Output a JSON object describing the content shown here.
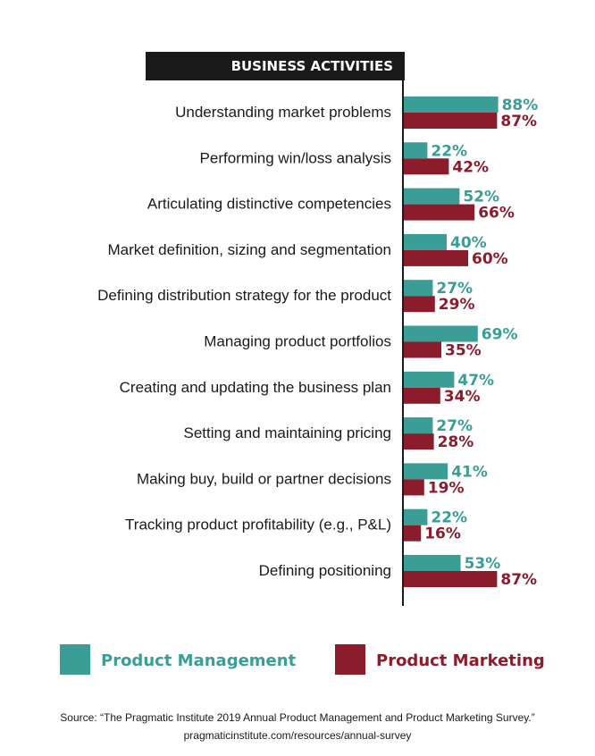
{
  "chart_data": {
    "type": "bar",
    "title": "BUSINESS ACTIVITIES",
    "orientation": "horizontal",
    "categories": [
      "Understanding market problems",
      "Performing win/loss analysis",
      "Articulating distinctive competencies",
      "Market definition, sizing and segmentation",
      "Defining distribution strategy for the product",
      "Managing product portfolios",
      "Creating and updating the business plan",
      "Setting and maintaining pricing",
      "Making buy, build or partner decisions",
      "Tracking product profitability (e.g., P&L)",
      "Defining positioning"
    ],
    "series": [
      {
        "name": "Product Management",
        "color": "#3a9d96",
        "values": [
          88,
          22,
          52,
          40,
          27,
          69,
          47,
          27,
          41,
          22,
          53
        ]
      },
      {
        "name": "Product Marketing",
        "color": "#8b1c2c",
        "values": [
          87,
          42,
          66,
          60,
          29,
          35,
          34,
          28,
          19,
          16,
          87
        ]
      }
    ],
    "value_suffix": "%",
    "xlim": [
      0,
      100
    ],
    "legend_position": "bottom",
    "grid": false
  },
  "source": {
    "line1": "Source: “The Pragmatic Institute 2019 Annual Product Management and Product Marketing Survey.”",
    "line2": "pragmaticinstitute.com/resources/annual-survey"
  }
}
